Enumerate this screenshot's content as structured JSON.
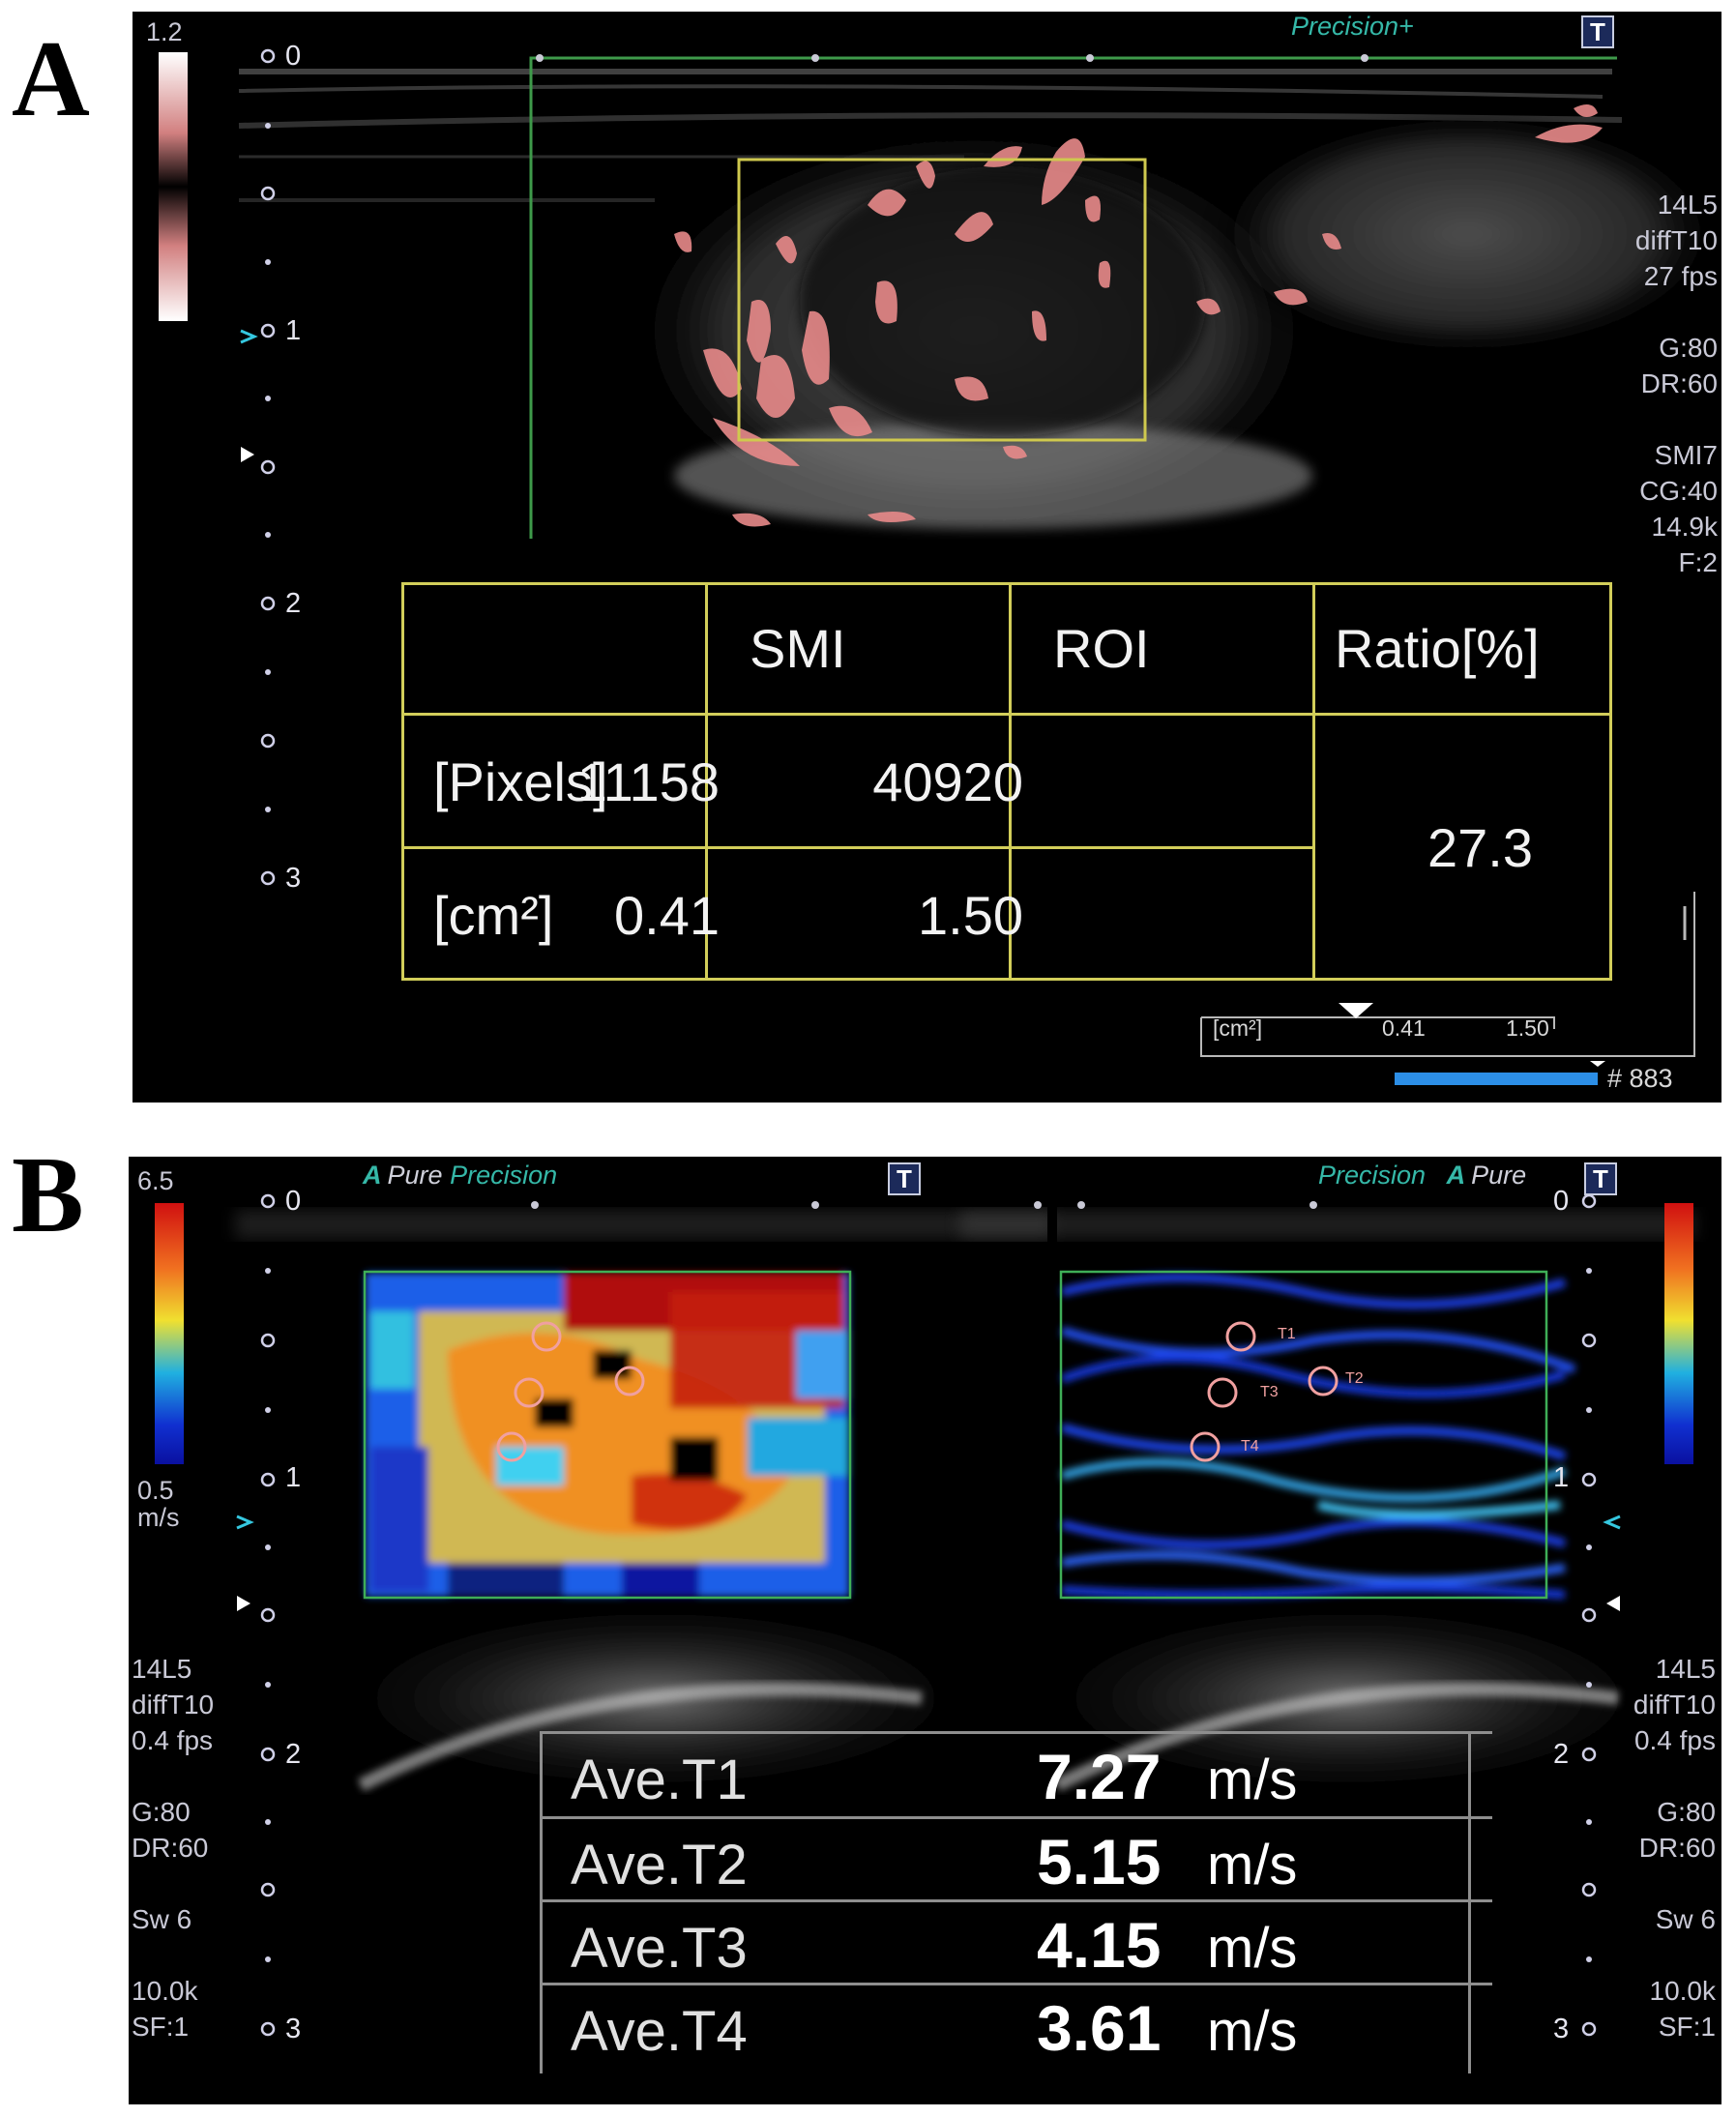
{
  "panel_a": {
    "letter": "A",
    "scale_max": "1.2",
    "brand": "Precision+",
    "badge": "T",
    "depth_ticks": [
      "0",
      "1",
      "2",
      "3"
    ],
    "side_info": "14L5\ndiffT10\n27 fps\n\nG:80\nDR:60\n\nSMI7\nCG:40\n14.9k\nF:2",
    "table": {
      "headers": [
        "SMI",
        "ROI",
        "Ratio[%]"
      ],
      "rows": [
        {
          "label": "[Pixels]",
          "smi": "11158",
          "roi": "40920"
        },
        {
          "label": "[cm²]",
          "smi": "0.41",
          "roi": "1.50"
        }
      ],
      "ratio": "27.3"
    },
    "mini_readout": {
      "label": "[cm²]",
      "smi": "0.41",
      "roi": "1.50"
    },
    "frame_number": "# 883",
    "colors": {
      "table_border": "#d2ce5a",
      "smi_signal": "#e88a8a",
      "roi_box": "#cfc94e"
    }
  },
  "panel_b": {
    "letter": "B",
    "scale_max": "6.5",
    "scale_min": "0.5",
    "scale_unit": "m/s",
    "brand_left": {
      "a": "A",
      "pure": "Pure",
      "precision": "Precision"
    },
    "brand_right": {
      "precision": "Precision",
      "a": "A",
      "pure": "Pure"
    },
    "badge": "T",
    "depth_ticks": [
      "0",
      "1",
      "2",
      "3"
    ],
    "side_info_left": "14L5\ndiffT10\n0.4 fps\n\nG:80\nDR:60\n\nSw 6\n\n10.0k\nSF:1",
    "side_info_right": "14L5\ndiffT10\n0.4 fps\n\nG:80\nDR:60\n\nSw 6\n\n10.0k\nSF:1",
    "roi_markers": [
      "T1",
      "T2",
      "T3",
      "T4"
    ],
    "measurements": [
      {
        "label": "Ave.T1",
        "value": "7.27",
        "unit": "m/s"
      },
      {
        "label": "Ave.T2",
        "value": "5.15",
        "unit": "m/s"
      },
      {
        "label": "Ave.T3",
        "value": "4.15",
        "unit": "m/s"
      },
      {
        "label": "Ave.T4",
        "value": "3.61",
        "unit": "m/s"
      }
    ],
    "colors": {
      "roi_box": "#3fae57",
      "marker": "#f0a0a0",
      "table_lines": "#8e8e8e"
    }
  }
}
